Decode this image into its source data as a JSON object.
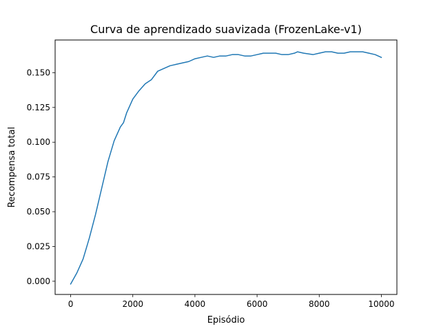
{
  "chart_data": {
    "type": "line",
    "title": "Curva de aprendizado suavizada (FrozenLake-v1)",
    "xlabel": "Episódio",
    "ylabel": "Recompensa total",
    "xlim": [
      -500,
      10500
    ],
    "ylim": [
      -0.0095,
      0.1735
    ],
    "xticks": [
      0,
      2000,
      4000,
      6000,
      8000,
      10000
    ],
    "xtick_labels": [
      "0",
      "2000",
      "4000",
      "6000",
      "8000",
      "10000"
    ],
    "yticks": [
      0.0,
      0.025,
      0.05,
      0.075,
      0.1,
      0.125,
      0.15
    ],
    "ytick_labels": [
      "0.000",
      "0.025",
      "0.050",
      "0.075",
      "0.100",
      "0.125",
      "0.150"
    ],
    "grid": false,
    "legend": "none",
    "series": [
      {
        "color": "#1f77b4",
        "x": [
          0,
          200,
          400,
          600,
          800,
          1000,
          1200,
          1400,
          1600,
          1700,
          1800,
          2000,
          2200,
          2400,
          2600,
          2800,
          3000,
          3200,
          3400,
          3600,
          3800,
          4000,
          4200,
          4400,
          4600,
          4800,
          5000,
          5200,
          5400,
          5600,
          5800,
          6000,
          6200,
          6400,
          6600,
          6800,
          7000,
          7200,
          7300,
          7500,
          7800,
          8000,
          8200,
          8400,
          8600,
          8800,
          9000,
          9200,
          9400,
          9600,
          9800,
          10000
        ],
        "y": [
          -0.002,
          0.006,
          0.016,
          0.031,
          0.048,
          0.067,
          0.086,
          0.101,
          0.111,
          0.114,
          0.121,
          0.131,
          0.137,
          0.142,
          0.145,
          0.151,
          0.153,
          0.155,
          0.156,
          0.157,
          0.158,
          0.16,
          0.161,
          0.162,
          0.161,
          0.162,
          0.162,
          0.163,
          0.163,
          0.162,
          0.162,
          0.163,
          0.164,
          0.164,
          0.164,
          0.163,
          0.163,
          0.164,
          0.165,
          0.164,
          0.163,
          0.164,
          0.165,
          0.165,
          0.164,
          0.164,
          0.165,
          0.165,
          0.165,
          0.164,
          0.163,
          0.161
        ]
      }
    ]
  }
}
